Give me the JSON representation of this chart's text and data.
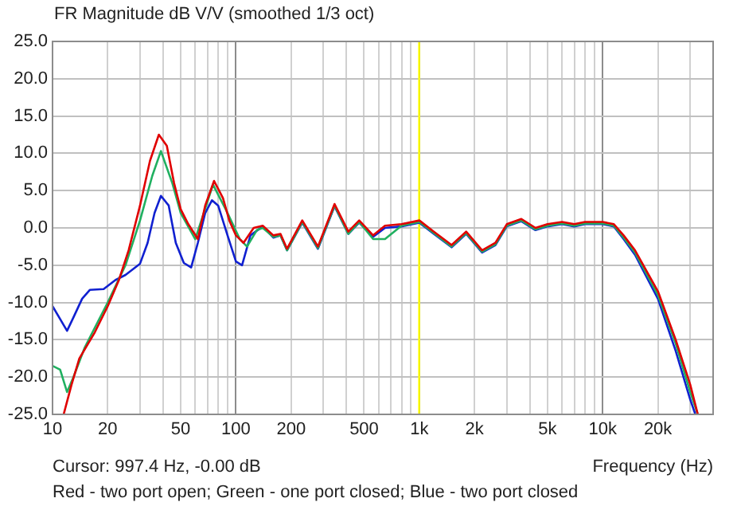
{
  "chart_data": {
    "type": "line",
    "title": "FR Magnitude dB V/V (smoothed 1/3 oct)",
    "xlabel": "Frequency (Hz)",
    "annotations": [
      "Cursor: 997.4 Hz, -0.00 dB",
      "Red - two port open; Green - one port closed; Blue - two port closed"
    ],
    "log": "x",
    "grid": true,
    "legend": false,
    "marker": "none",
    "line_style": "solid",
    "xlim": [
      10,
      40000
    ],
    "xticks": [
      {
        "value": 10,
        "label": "10"
      },
      {
        "value": 20,
        "label": "20"
      },
      {
        "value": 30,
        "label": null
      },
      {
        "value": 40,
        "label": null
      },
      {
        "value": 50,
        "label": "50"
      },
      {
        "value": 60,
        "label": null
      },
      {
        "value": 70,
        "label": null
      },
      {
        "value": 80,
        "label": null
      },
      {
        "value": 90,
        "label": null
      },
      {
        "value": 100,
        "label": "100"
      },
      {
        "value": 200,
        "label": "200"
      },
      {
        "value": 300,
        "label": null
      },
      {
        "value": 400,
        "label": null
      },
      {
        "value": 500,
        "label": "500"
      },
      {
        "value": 600,
        "label": null
      },
      {
        "value": 700,
        "label": null
      },
      {
        "value": 800,
        "label": null
      },
      {
        "value": 900,
        "label": null
      },
      {
        "value": 1000,
        "label": "1k"
      },
      {
        "value": 2000,
        "label": "2k"
      },
      {
        "value": 3000,
        "label": null
      },
      {
        "value": 4000,
        "label": null
      },
      {
        "value": 5000,
        "label": "5k"
      },
      {
        "value": 6000,
        "label": null
      },
      {
        "value": 7000,
        "label": null
      },
      {
        "value": 8000,
        "label": null
      },
      {
        "value": 9000,
        "label": null
      },
      {
        "value": 10000,
        "label": "10k"
      },
      {
        "value": 20000,
        "label": "20k"
      },
      {
        "value": 30000,
        "label": null
      },
      {
        "value": 40000,
        "label": null
      }
    ],
    "ylim": [
      -25,
      25
    ],
    "yticks": [
      {
        "value": 25,
        "label": "25.0"
      },
      {
        "value": 20,
        "label": "20.0"
      },
      {
        "value": 15,
        "label": "15.0"
      },
      {
        "value": 10,
        "label": "10.0"
      },
      {
        "value": 5,
        "label": "5.0"
      },
      {
        "value": 0,
        "label": "0.0"
      },
      {
        "value": -5,
        "label": "-5.0"
      },
      {
        "value": -10,
        "label": "-10.0"
      },
      {
        "value": -15,
        "label": "-15.0"
      },
      {
        "value": -20,
        "label": "-20.0"
      },
      {
        "value": -25,
        "label": "-25.0"
      }
    ],
    "ref_lines": [
      {
        "axis": "x",
        "value": 997.4,
        "label": null,
        "color": "#ffff00"
      }
    ],
    "series": [
      {
        "color": "#e00000",
        "x": [
          11.5,
          12.7,
          14,
          17,
          20,
          23,
          26,
          30,
          34,
          38,
          42,
          46,
          50,
          55,
          62,
          68,
          76,
          85,
          92,
          100,
          110,
          125,
          140,
          160,
          175,
          190,
          230,
          280,
          345,
          410,
          470,
          560,
          650,
          800,
          1000,
          1200,
          1500,
          1800,
          2200,
          2600,
          3000,
          3600,
          4300,
          5000,
          6000,
          7000,
          8000,
          10000,
          11500,
          13000,
          15000,
          20000,
          25000,
          30000,
          33000
        ],
        "values": [
          -25,
          -21,
          -17.5,
          -14,
          -10.5,
          -7,
          -3,
          3,
          9,
          12.5,
          11,
          6,
          2.5,
          0.5,
          -1.5,
          3,
          6.3,
          4,
          1,
          -1,
          -2,
          0,
          0.3,
          -1,
          -0.8,
          -2.8,
          1,
          -2.5,
          3.2,
          -0.5,
          1,
          -1,
          0.3,
          0.5,
          1,
          -0.5,
          -2.3,
          -0.5,
          -3,
          -2,
          0.5,
          1.2,
          0,
          0.5,
          0.8,
          0.5,
          0.8,
          0.8,
          0.5,
          -1,
          -3,
          -8.5,
          -15,
          -21,
          -25
        ]
      },
      {
        "color": "#20b060",
        "x": [
          10,
          11,
          12,
          13,
          15,
          20,
          25,
          30,
          35,
          39,
          45,
          50,
          60,
          75,
          90,
          105,
          115,
          130,
          140,
          160,
          175,
          190,
          230,
          280,
          345,
          410,
          470,
          560,
          650,
          800,
          1000,
          1200,
          1500,
          1800,
          2200,
          2600,
          3000,
          3600,
          4300,
          5000,
          6000,
          7000,
          8000,
          10000,
          11500,
          13000,
          15000,
          20000,
          25000,
          30000,
          33000
        ],
        "values": [
          -18.5,
          -19,
          -22,
          -20,
          -16,
          -10,
          -5,
          1,
          7,
          10.3,
          6,
          2,
          -1.5,
          5.8,
          2,
          -1.5,
          -2.5,
          -0.3,
          0,
          -1.2,
          -1,
          -3,
          0.8,
          -2.7,
          3,
          -0.8,
          0.8,
          -1.5,
          -1.5,
          0.3,
          0.8,
          -0.7,
          -2.5,
          -0.7,
          -3.2,
          -2.2,
          0.3,
          1,
          -0.2,
          0.3,
          0.6,
          0.3,
          0.6,
          0.6,
          0.3,
          -1.3,
          -3.3,
          -9,
          -15.5,
          -22,
          -25
        ]
      },
      {
        "color": "#1020d0",
        "x": [
          10,
          12,
          13,
          14.5,
          16,
          19,
          22,
          25,
          30,
          33,
          36,
          39,
          43,
          47,
          52,
          57,
          62,
          68,
          74,
          80,
          90,
          100,
          108,
          120,
          140,
          160,
          175,
          190,
          230,
          280,
          345,
          410,
          470,
          560,
          650,
          800,
          1000,
          1200,
          1500,
          1800,
          2200,
          2600,
          3000,
          3600,
          4300,
          5000,
          6000,
          7000,
          8000,
          10000,
          11500,
          13000,
          15000,
          20000,
          25000,
          30000,
          32000
        ],
        "values": [
          -10.5,
          -13.8,
          -12,
          -9.5,
          -8.3,
          -8.2,
          -7,
          -6.3,
          -4.8,
          -2,
          2,
          4.3,
          3,
          -2,
          -4.7,
          -5.3,
          -2,
          2,
          3.7,
          3,
          -1,
          -4.5,
          -5,
          -1,
          0.2,
          -1.3,
          -1,
          -3,
          0.7,
          -2.8,
          2.9,
          -0.8,
          0.7,
          -1.2,
          0,
          0.2,
          0.7,
          -0.8,
          -2.6,
          -0.8,
          -3.3,
          -2.3,
          0.2,
          0.9,
          -0.3,
          0.2,
          0.5,
          0.2,
          0.5,
          0.5,
          0.2,
          -1.5,
          -3.6,
          -9.5,
          -16.5,
          -23,
          -25
        ]
      }
    ]
  }
}
